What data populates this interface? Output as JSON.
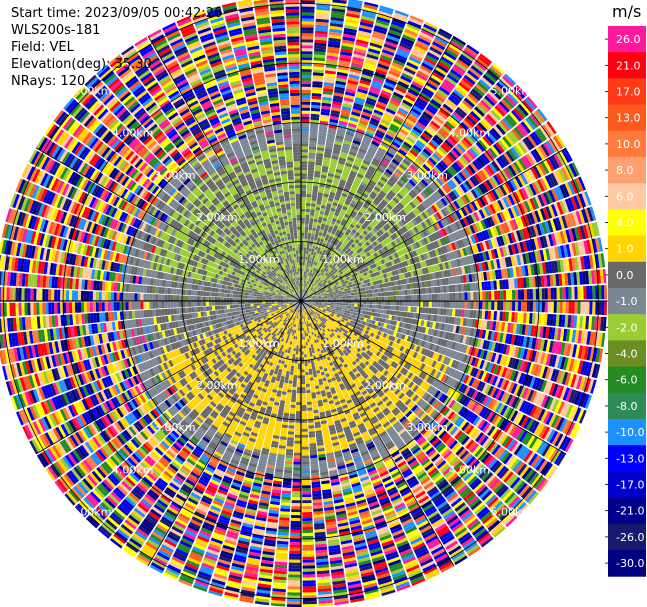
{
  "info": {
    "start_time": "Start time: 2023/09/05 00:42:26",
    "instrument": "WLS200s-181",
    "field": "Field: VEL",
    "elevation": "Elevation(deg): 35.30",
    "nrays": "NRays: 120"
  },
  "chart_data": {
    "type": "heatmap",
    "projection": "polar",
    "field": "VEL",
    "nrays": 120,
    "range_rings_km": [
      1.0,
      2.0,
      3.0,
      4.0,
      5.0
    ],
    "ring_labels": [
      "1.00km",
      "2.00km",
      "3.00km",
      "4.00km",
      "5.00km"
    ],
    "colorbar": {
      "unit": "m/s",
      "vmin": -30.0,
      "vmax": 30.0,
      "tick_labels": [
        "26.0",
        "21.0",
        "17.0",
        "13.0",
        "10.0",
        "8.0",
        "6.0",
        "4.0",
        "1.0",
        "0.0",
        "-1.0",
        "-2.0",
        "-4.0",
        "-6.0",
        "-8.0",
        "-10.0",
        "-13.0",
        "-17.0",
        "-21.0",
        "-26.0",
        "-30.0"
      ],
      "colors": [
        "#ff1a9c",
        "#ff0011",
        "#ff3a14",
        "#ff5a1e",
        "#ff7a3c",
        "#ffa070",
        "#ffc8a0",
        "#ffff00",
        "#ffd400",
        "#696969",
        "#7c8794",
        "#9acd32",
        "#6b8e23",
        "#228b22",
        "#2e8b57",
        "#1e90ff",
        "#0000ff",
        "#0000cd",
        "#00008b",
        "#191970",
        "#000080"
      ]
    }
  }
}
